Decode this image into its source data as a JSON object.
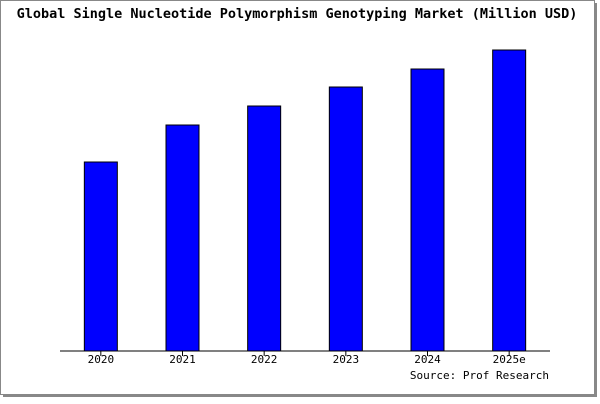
{
  "chart_data": {
    "type": "bar",
    "title": "Global Single Nucleotide Polymorphism Genotyping Market (Million USD)",
    "categories": [
      "2020",
      "2021",
      "2022",
      "2023",
      "2024",
      "2025e"
    ],
    "values": [
      189,
      226,
      245,
      264,
      282,
      301
    ],
    "color": "#0000ff",
    "ylim": [
      0,
      301
    ],
    "source": "Source: Prof Research"
  }
}
